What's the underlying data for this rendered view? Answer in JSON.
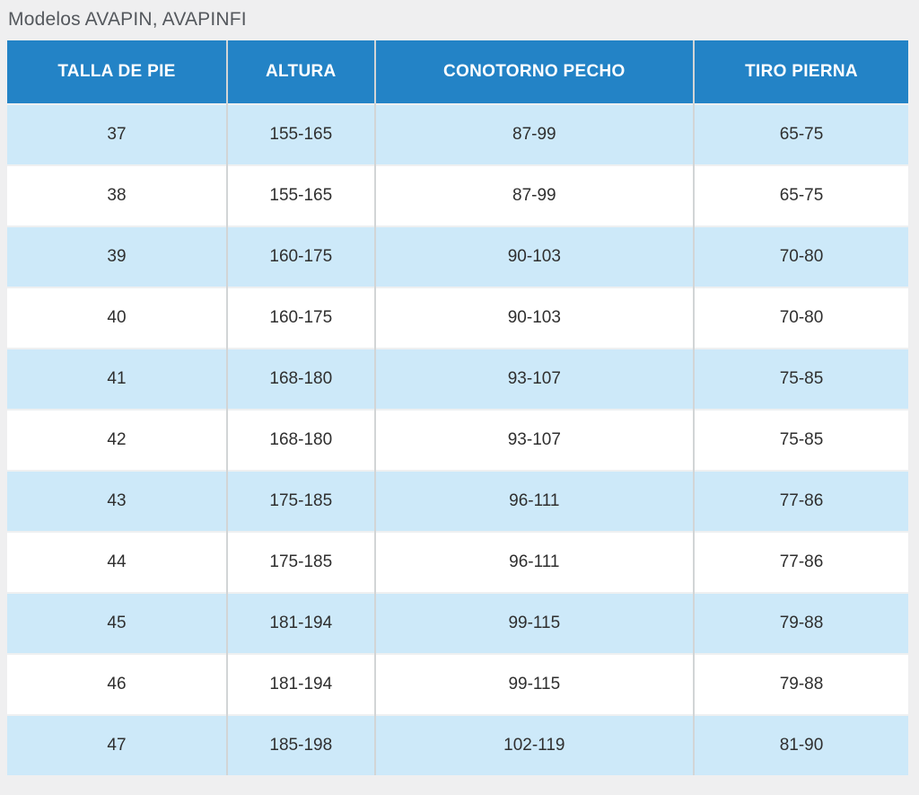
{
  "page": {
    "title": "Modelos AVAPIN, AVAPINFI",
    "background_color": "#efeff0"
  },
  "colors": {
    "header_bg": "#2383c6",
    "header_text": "#ffffff",
    "row_stripe_bg": "#cde9f9",
    "row_plain_bg": "#ffffff",
    "cell_text": "#2f2f2f",
    "title_text": "#54585d",
    "column_separator": "#d2d5d6",
    "row_separator": "#eef0f1"
  },
  "chart_data": {
    "type": "table",
    "title": "Modelos AVAPIN, AVAPINFI",
    "columns": [
      "TALLA DE PIE",
      "ALTURA",
      "CONOTORNO PECHO",
      "TIRO PIERNA"
    ],
    "rows": [
      [
        "37",
        "155-165",
        "87-99",
        "65-75"
      ],
      [
        "38",
        "155-165",
        "87-99",
        "65-75"
      ],
      [
        "39",
        "160-175",
        "90-103",
        "70-80"
      ],
      [
        "40",
        "160-175",
        "90-103",
        "70-80"
      ],
      [
        "41",
        "168-180",
        "93-107",
        "75-85"
      ],
      [
        "42",
        "168-180",
        "93-107",
        "75-85"
      ],
      [
        "43",
        "175-185",
        "96-111",
        "77-86"
      ],
      [
        "44",
        "175-185",
        "96-111",
        "77-86"
      ],
      [
        "45",
        "181-194",
        "99-115",
        "79-88"
      ],
      [
        "46",
        "181-194",
        "99-115",
        "79-88"
      ],
      [
        "47",
        "185-198",
        "102-119",
        "81-90"
      ]
    ],
    "layout": {
      "striped": true,
      "stripe_starts_on_first_row": true,
      "column_width_percent": [
        24.4,
        16.4,
        35.4,
        23.8
      ]
    }
  }
}
